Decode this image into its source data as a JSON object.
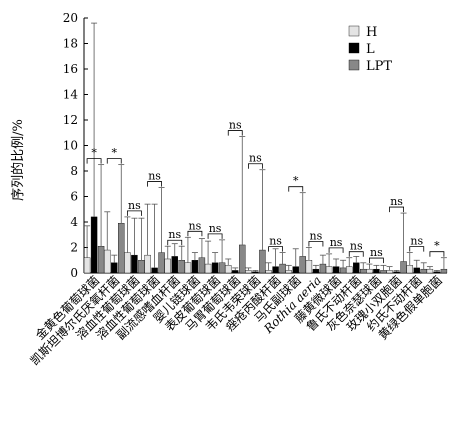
{
  "chart_data": {
    "type": "bar",
    "ylabel": "序列的比例/%",
    "xlabel": "",
    "ylim": [
      0,
      20
    ],
    "yticks": [
      0,
      2,
      4,
      6,
      8,
      10,
      12,
      14,
      16,
      18,
      20
    ],
    "legend_position": "top-right",
    "categories": [
      "金黄色葡萄球菌",
      "凯斯坦博尔氏厌氧杆菌",
      "溶血性葡萄球菌",
      "溶血性葡萄球菌",
      "副流感嗜血杆菌",
      "婴儿链球菌",
      "表皮葡萄球菌",
      "马胃葡萄球菌",
      "韦氏韦荣球菌",
      "痤疮丙酸杆菌",
      "马氏副球菌",
      "Rothia aeria",
      "藤黄微球菌",
      "鲁氏不动杆菌",
      "灰色奈瑟球菌",
      "玫瑰小双胞菌",
      "约氏不动杆菌",
      "黄绿色假单胞菌"
    ],
    "series": [
      {
        "name": "H",
        "color": "#e4e4e4",
        "values": [
          1.2,
          1.8,
          1.6,
          1.4,
          1.1,
          0.8,
          0.7,
          0.6,
          0.2,
          0.2,
          0.2,
          1.0,
          0.5,
          0.5,
          0.3,
          0.2,
          0.6,
          0.3
        ],
        "errors": [
          2.5,
          3.0,
          2.8,
          4.0,
          1.0,
          2.0,
          1.8,
          0.5,
          0.2,
          0.6,
          0.4,
          1.0,
          1.0,
          0.7,
          0.4,
          0.3,
          1.0,
          0.2
        ]
      },
      {
        "name": "L",
        "color": "#000000",
        "values": [
          4.4,
          0.8,
          1.4,
          0.4,
          1.3,
          1.0,
          0.8,
          0.2,
          0.1,
          0.5,
          0.5,
          0.3,
          0.5,
          0.8,
          0.3,
          0.1,
          0.4,
          0.1
        ],
        "errors": [
          15.2,
          0.6,
          2.9,
          5.0,
          1.0,
          0.6,
          0.8,
          0.2,
          0.1,
          1.4,
          1.4,
          0.3,
          0.6,
          0.5,
          0.3,
          0.1,
          0.6,
          0.1
        ]
      },
      {
        "name": "LPT",
        "color": "#888888",
        "values": [
          2.1,
          3.9,
          1.0,
          1.6,
          1.0,
          1.2,
          0.8,
          2.2,
          1.8,
          0.7,
          1.3,
          0.7,
          0.4,
          0.3,
          0.2,
          0.9,
          0.3,
          0.3
        ],
        "errors": [
          6.4,
          4.6,
          3.3,
          5.1,
          1.1,
          1.5,
          1.8,
          8.5,
          6.3,
          0.9,
          5.0,
          0.7,
          0.6,
          0.5,
          0.4,
          3.8,
          0.5,
          0.9
        ]
      }
    ],
    "significance": [
      "*",
      "*",
      "ns",
      "ns",
      "ns",
      "ns",
      "ns",
      "ns",
      "ns",
      "ns",
      "*",
      "ns",
      "ns",
      "ns",
      "ns",
      "ns",
      "ns",
      "*"
    ]
  }
}
